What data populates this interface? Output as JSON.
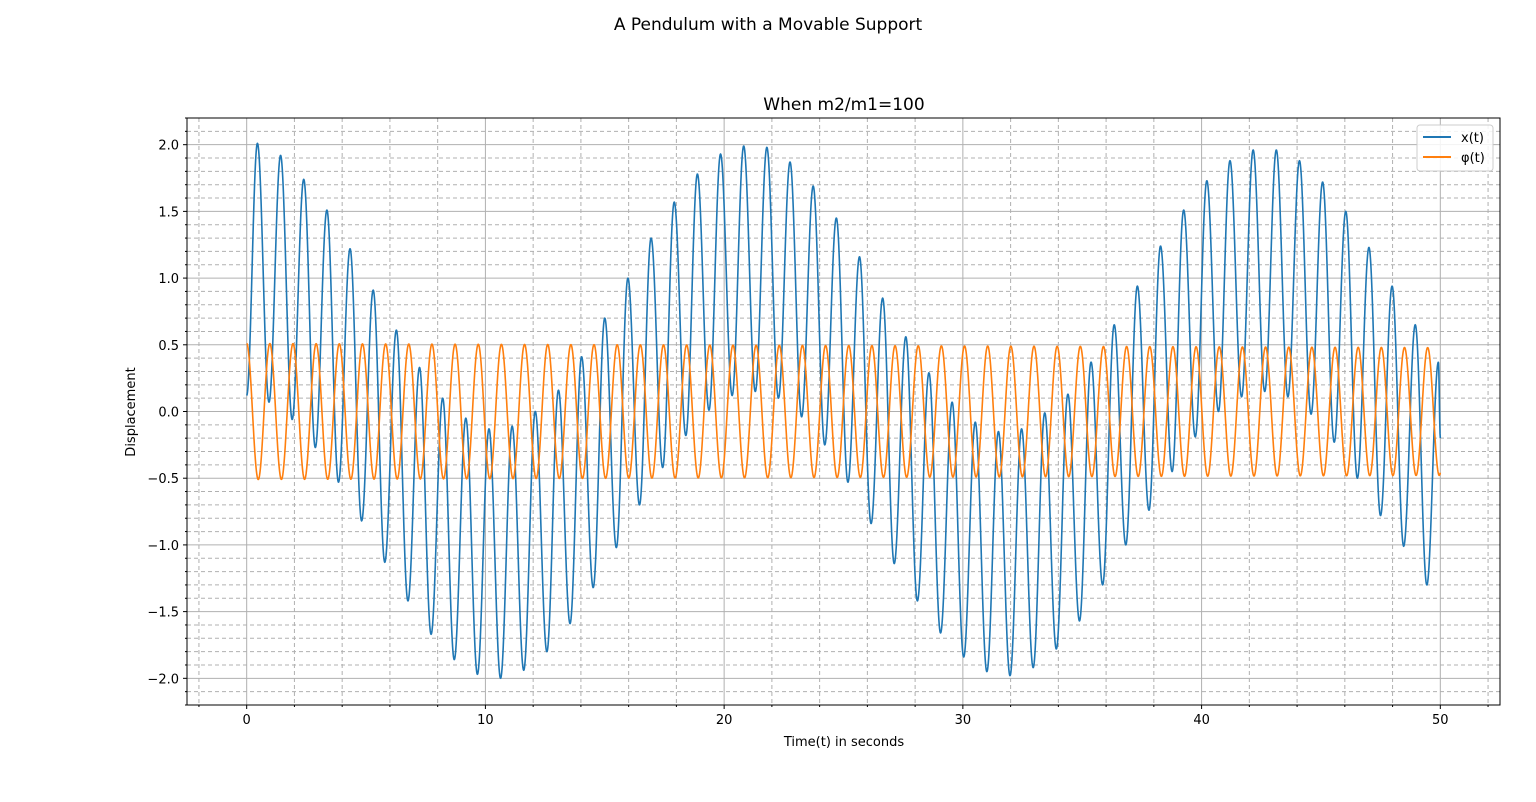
{
  "figure": {
    "suptitle": "A Pendulum with a Movable Support"
  },
  "chart_data": {
    "type": "line",
    "title": "When m2/m1=100",
    "xlabel": "Time(t) in seconds",
    "ylabel": "Displacement",
    "xlim": [
      -2.5,
      52.5
    ],
    "ylim": [
      -2.2,
      2.2
    ],
    "grid": true,
    "minor_grid": true,
    "legend_position": "top-right",
    "xticks": [
      0,
      10,
      20,
      30,
      40,
      50
    ],
    "xtick_labels": [
      "0",
      "10",
      "20",
      "30",
      "40",
      "50"
    ],
    "yticks": [
      2.0,
      1.5,
      1.0,
      0.5,
      0.0,
      -0.5,
      -1.0,
      -1.5,
      -2.0
    ],
    "ytick_labels": [
      "2.0",
      "1.5",
      "1.0",
      "0.5",
      "0.0",
      "−0.5",
      "−1.0",
      "−1.5",
      "−2.0"
    ],
    "x_range": [
      0,
      50
    ],
    "series": [
      {
        "name": "x(t)",
        "color": "#1f77b4",
        "description": "beating oscillation",
        "peaks_t": [
          0.45,
          1.42,
          2.39,
          3.36,
          4.33,
          5.3,
          6.27,
          7.24,
          8.21,
          9.18,
          10.15,
          11.12,
          12.09,
          13.06,
          14.03,
          15.0,
          15.97,
          16.94,
          17.91,
          18.88,
          19.85,
          20.82,
          21.79,
          22.76,
          23.73,
          24.7,
          25.67,
          26.64,
          27.61,
          28.58,
          29.55,
          30.52,
          31.49,
          32.46,
          33.43,
          34.4,
          35.37,
          36.34,
          37.31,
          38.28,
          39.25,
          40.22,
          41.19,
          42.16,
          43.13,
          44.1,
          45.07,
          46.04,
          47.01,
          47.98,
          48.95,
          49.92
        ],
        "peak_values": [
          2.01,
          1.92,
          1.74,
          1.51,
          1.22,
          0.91,
          0.61,
          0.33,
          0.1,
          -0.05,
          -0.13,
          -0.11,
          0.0,
          0.16,
          0.41,
          0.7,
          1.0,
          1.3,
          1.57,
          1.78,
          1.93,
          1.99,
          1.98,
          1.87,
          1.69,
          1.45,
          1.16,
          0.85,
          0.56,
          0.29,
          0.07,
          -0.08,
          -0.15,
          -0.13,
          -0.01,
          0.13,
          0.37,
          0.65,
          0.94,
          1.24,
          1.51,
          1.73,
          1.88,
          1.96,
          1.96,
          1.88,
          1.72,
          1.5,
          1.23,
          0.94,
          0.65,
          0.37
        ],
        "trough_values": [
          0.07,
          -0.06,
          -0.27,
          -0.53,
          -0.82,
          -1.13,
          -1.42,
          -1.67,
          -1.86,
          -1.97,
          -2.0,
          -1.94,
          -1.8,
          -1.59,
          -1.32,
          -1.02,
          -0.7,
          -0.42,
          -0.18,
          0.01,
          0.12,
          0.15,
          0.1,
          -0.04,
          -0.25,
          -0.53,
          -0.84,
          -1.14,
          -1.42,
          -1.66,
          -1.84,
          -1.95,
          -1.98,
          -1.92,
          -1.78,
          -1.57,
          -1.3,
          -1.0,
          -0.74,
          -0.45,
          -0.19,
          0.0,
          0.11,
          0.15,
          0.11,
          -0.02,
          -0.23,
          -0.5,
          -0.78,
          -1.01,
          -1.3,
          -1.55,
          -1.74,
          -1.89,
          -1.9,
          -1.81
        ]
      },
      {
        "name": "φ(t)",
        "color": "#ff7f0e",
        "description": "steady oscillation",
        "amplitude": 0.49,
        "period": 0.97,
        "initial": 0.51
      }
    ]
  }
}
